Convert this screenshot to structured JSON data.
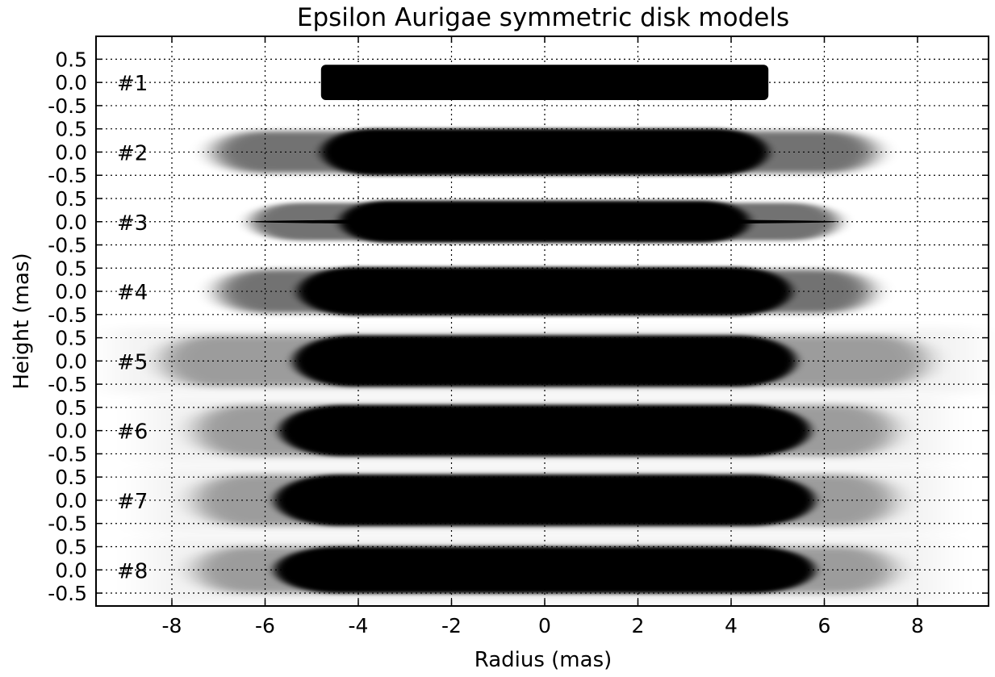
{
  "chart_data": {
    "type": "heatmap",
    "title": "Epsilon Aurigae symmetric disk models",
    "xlabel": "Radius (mas)",
    "ylabel": "Height (mas)",
    "xlim": [
      -9.5,
      9.5
    ],
    "ylim": [
      -0.75,
      0.75
    ],
    "x_ticks": [
      -8,
      -6,
      -4,
      -2,
      0,
      2,
      4,
      6,
      8
    ],
    "x_tick_labels": [
      "-8",
      "-6",
      "-4",
      "-2",
      "0",
      "2",
      "4",
      "6",
      "8"
    ],
    "y_ticks": [
      0.5,
      0.0,
      -0.5
    ],
    "y_tick_labels": [
      "0.5",
      "0.0",
      "-0.5"
    ],
    "grid": true,
    "colormap": "grayscale (white = 0, black = opaque)",
    "panels": [
      {
        "label": "#1",
        "core_radius": 4.8,
        "outer_radius": 4.9,
        "half_height": 0.38,
        "edge_profile": "sharp"
      },
      {
        "label": "#2",
        "core_radius": 4.8,
        "outer_radius": 7.1,
        "half_height": 0.5,
        "edge_profile": "soft"
      },
      {
        "label": "#3",
        "core_radius": 4.4,
        "outer_radius": 6.3,
        "half_height": 0.45,
        "edge_profile": "flared",
        "midplane_extent": 6.3
      },
      {
        "label": "#4",
        "core_radius": 5.3,
        "outer_radius": 7.0,
        "half_height": 0.52,
        "edge_profile": "soft"
      },
      {
        "label": "#5",
        "core_radius": 5.4,
        "outer_radius": 8.2,
        "half_height": 0.55,
        "edge_profile": "soft-halo"
      },
      {
        "label": "#6",
        "core_radius": 5.7,
        "outer_radius": 7.5,
        "half_height": 0.55,
        "edge_profile": "soft-halo"
      },
      {
        "label": "#7",
        "core_radius": 5.8,
        "outer_radius": 7.5,
        "half_height": 0.55,
        "edge_profile": "soft-halo"
      },
      {
        "label": "#8",
        "core_radius": 5.8,
        "outer_radius": 7.5,
        "half_height": 0.5,
        "edge_profile": "soft-halo"
      }
    ]
  }
}
